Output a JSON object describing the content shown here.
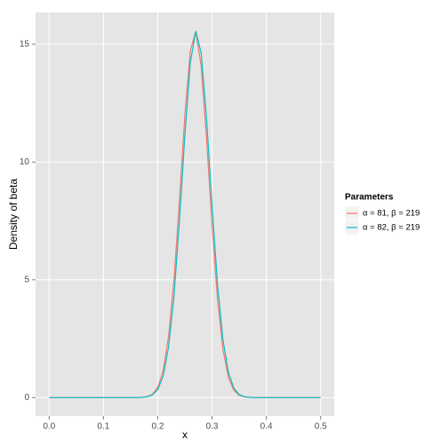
{
  "chart_data": {
    "type": "line",
    "x_label": "x",
    "y_label": "Density of beta",
    "legend_title": "Parameters",
    "legend_position": "right",
    "x": [
      0,
      0.01,
      0.02,
      0.03,
      0.04,
      0.05,
      0.06,
      0.07,
      0.08,
      0.09,
      0.1,
      0.11,
      0.12,
      0.13,
      0.14,
      0.15,
      0.16,
      0.17,
      0.18,
      0.19,
      0.2,
      0.21,
      0.22,
      0.23,
      0.24,
      0.25,
      0.26,
      0.27,
      0.28,
      0.29,
      0.3,
      0.31,
      0.32,
      0.33,
      0.34,
      0.35,
      0.36,
      0.37,
      0.38,
      0.39,
      0.4,
      0.41,
      0.42,
      0.43,
      0.44,
      0.45,
      0.46,
      0.47,
      0.48,
      0.49,
      0.5
    ],
    "series": [
      {
        "name": "α = 81, β = 219",
        "color": "#F8766D",
        "values": [
          0,
          0,
          0,
          0,
          0,
          0,
          0,
          0,
          0,
          0,
          0,
          0,
          0,
          0,
          0,
          0,
          0,
          0.01,
          0.04,
          0.14,
          0.43,
          1.14,
          2.6,
          5.03,
          8.38,
          11.99,
          14.73,
          15.54,
          14.08,
          10.94,
          7.3,
          4.19,
          2.06,
          0.87,
          0.32,
          0.1,
          0.03,
          0.01,
          0,
          0,
          0,
          0,
          0,
          0,
          0,
          0,
          0,
          0,
          0,
          0,
          0
        ]
      },
      {
        "name": "α = 82, β = 219",
        "color": "#00BFC4",
        "values": [
          0,
          0,
          0,
          0,
          0,
          0,
          0,
          0,
          0,
          0,
          0,
          0,
          0,
          0,
          0,
          0,
          0,
          0.01,
          0.03,
          0.11,
          0.34,
          0.92,
          2.15,
          4.33,
          7.52,
          11.16,
          14.22,
          15.56,
          14.62,
          11.79,
          8.16,
          4.83,
          2.47,
          1.08,
          0.41,
          0.13,
          0.04,
          0.01,
          0,
          0,
          0,
          0,
          0,
          0,
          0,
          0,
          0,
          0,
          0,
          0,
          0
        ]
      }
    ],
    "xlim": [
      -0.025,
      0.525
    ],
    "ylim": [
      -0.78,
      16.35
    ],
    "xticks": [
      {
        "value": 0,
        "label": "0.0"
      },
      0.1,
      0.2,
      0.3,
      0.4,
      0.5
    ],
    "yticks": [
      0,
      5,
      10,
      15
    ],
    "grid": true
  }
}
